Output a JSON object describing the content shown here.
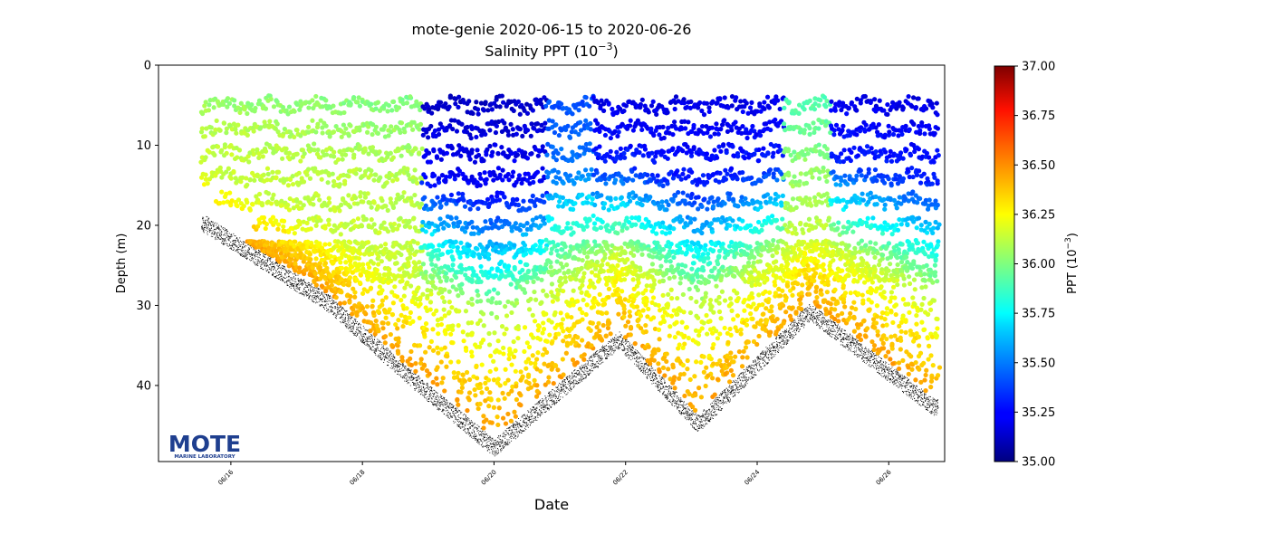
{
  "chart_data": {
    "type": "scatter",
    "title_line1": "mote-genie 2020-06-15 to 2020-06-26",
    "title_line2_prefix": "Salinity PPT (10",
    "title_line2_exp": "−3",
    "title_line2_suffix": ")",
    "xlabel": "Date",
    "ylabel": "Depth (m)",
    "x_ticks": [
      "06/16",
      "06/18",
      "06/20",
      "06/22",
      "06/24",
      "06/26"
    ],
    "x_tick_days": [
      16,
      18,
      20,
      22,
      24,
      26
    ],
    "xlim_days": [
      14.9,
      26.85
    ],
    "y_ticks": [
      0,
      10,
      20,
      30,
      40
    ],
    "ylim": [
      49.5,
      0
    ],
    "y_inverted": true,
    "colorbar": {
      "label_prefix": "PPT (10",
      "label_exp": "−3",
      "label_suffix": ")",
      "min": 35.0,
      "max": 37.0,
      "ticks": [
        "35.00",
        "35.25",
        "35.50",
        "35.75",
        "36.00",
        "36.25",
        "36.50",
        "36.75",
        "37.00"
      ],
      "colormap": "jet"
    },
    "logo": {
      "text": "MOTE",
      "subtext": "MARINE LABORATORY",
      "color": "#1f3f8f"
    },
    "bottom_profile": {
      "day": [
        15.6,
        17.5,
        18.7,
        20.0,
        21.9,
        23.1,
        24.8,
        26.7
      ],
      "depth": [
        19,
        29,
        38,
        47,
        33.5,
        44,
        30,
        42
      ]
    },
    "salinity_model": {
      "fresh_layer_start_day": 18.9,
      "fresh_layer_breaks": [
        {
          "day": 21.0,
          "value": 35.75
        },
        {
          "day": 21.9,
          "value": 35.2
        },
        {
          "day": 24.5,
          "value": 35.85
        },
        {
          "day": 25.2,
          "value": 35.1
        }
      ],
      "surface_value_early": 35.95,
      "deep_value": 36.45,
      "sample_depth_bands": [
        5,
        8,
        11,
        14,
        17,
        20,
        23,
        26
      ]
    }
  }
}
